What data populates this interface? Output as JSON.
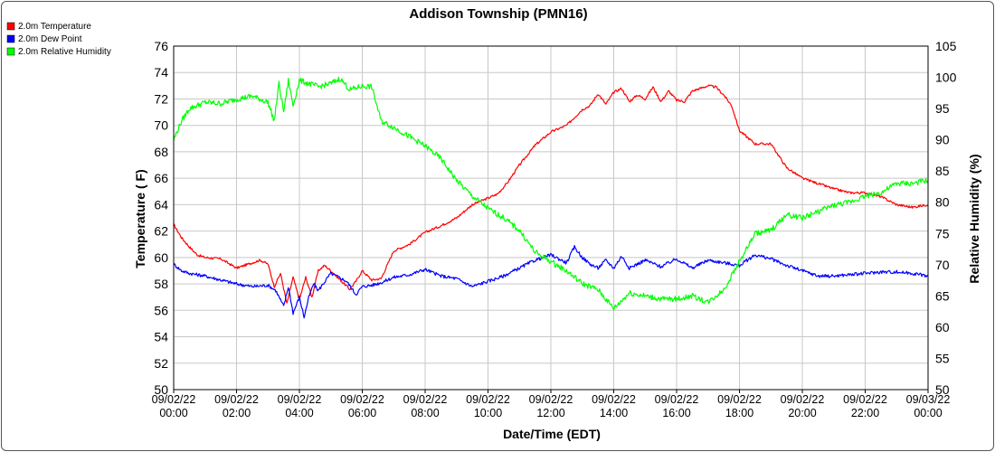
{
  "chart_data": {
    "type": "line",
    "title": "Addison Township (PMN16)",
    "xlabel": "Date/Time (EDT)",
    "ylabel_left": "Temperature ( F)",
    "ylabel_right": "Relative Humidity (%)",
    "ylim_left": [
      50,
      76
    ],
    "ylim_right": [
      50,
      105
    ],
    "yticks_left": [
      50,
      52,
      54,
      56,
      58,
      60,
      62,
      64,
      66,
      68,
      70,
      72,
      74,
      76
    ],
    "yticks_right": [
      50,
      55,
      60,
      65,
      70,
      75,
      80,
      85,
      90,
      95,
      100,
      105
    ],
    "xlim_hours": [
      0,
      24
    ],
    "xticks": [
      {
        "h": 0,
        "date": "09/02/22",
        "time": "00:00"
      },
      {
        "h": 2,
        "date": "09/02/22",
        "time": "02:00"
      },
      {
        "h": 4,
        "date": "09/02/22",
        "time": "04:00"
      },
      {
        "h": 6,
        "date": "09/02/22",
        "time": "06:00"
      },
      {
        "h": 8,
        "date": "09/02/22",
        "time": "08:00"
      },
      {
        "h": 10,
        "date": "09/02/22",
        "time": "10:00"
      },
      {
        "h": 12,
        "date": "09/02/22",
        "time": "12:00"
      },
      {
        "h": 14,
        "date": "09/02/22",
        "time": "14:00"
      },
      {
        "h": 16,
        "date": "09/02/22",
        "time": "16:00"
      },
      {
        "h": 18,
        "date": "09/02/22",
        "time": "18:00"
      },
      {
        "h": 20,
        "date": "09/02/22",
        "time": "20:00"
      },
      {
        "h": 22,
        "date": "09/02/22",
        "time": "22:00"
      },
      {
        "h": 24,
        "date": "09/03/22",
        "time": "00:00"
      }
    ],
    "grid": true,
    "legend_position": "top-left",
    "series": [
      {
        "name": "2.0m Temperature",
        "color": "#ff0000",
        "axis": "left",
        "x": [
          0,
          0.25,
          0.5,
          0.75,
          1,
          1.5,
          2,
          2.25,
          2.5,
          2.75,
          3,
          3.2,
          3.4,
          3.6,
          3.8,
          4,
          4.2,
          4.4,
          4.6,
          4.8,
          5,
          5.3,
          5.6,
          5.8,
          6,
          6.3,
          6.6,
          7,
          7.5,
          8,
          8.5,
          9,
          9.5,
          10,
          10.3,
          10.6,
          11,
          11.5,
          12,
          12.5,
          13,
          13.25,
          13.5,
          13.75,
          14,
          14.25,
          14.5,
          14.75,
          15,
          15.25,
          15.5,
          15.75,
          16,
          16.25,
          16.5,
          16.75,
          17,
          17.25,
          17.5,
          17.75,
          18,
          18.5,
          19,
          19.5,
          20,
          20.5,
          21,
          21.5,
          22,
          22.5,
          23,
          23.5,
          24
        ],
        "y": [
          62.5,
          61.5,
          60.8,
          60.2,
          60.0,
          59.9,
          59.2,
          59.4,
          59.6,
          59.8,
          59.5,
          57.8,
          58.8,
          56.5,
          58.5,
          56.8,
          58.5,
          57.0,
          59.0,
          59.4,
          59.0,
          58.3,
          57.6,
          58.2,
          59.0,
          58.3,
          58.4,
          60.5,
          61.0,
          61.9,
          62.4,
          63.0,
          64.0,
          64.5,
          64.8,
          65.6,
          67.0,
          68.5,
          69.5,
          70.0,
          71.2,
          71.5,
          72.4,
          71.6,
          72.5,
          72.8,
          71.8,
          72.3,
          72.0,
          72.9,
          71.8,
          72.6,
          71.9,
          71.8,
          72.6,
          72.8,
          73.0,
          72.9,
          72.3,
          71.5,
          69.6,
          68.6,
          68.6,
          66.8,
          66.0,
          65.6,
          65.2,
          64.9,
          64.9,
          64.6,
          64.0,
          63.8,
          64.0
        ]
      },
      {
        "name": "2.0m Dew Point",
        "color": "#0000ff",
        "axis": "left",
        "x": [
          0,
          0.25,
          0.5,
          1,
          1.5,
          2,
          2.5,
          3,
          3.25,
          3.5,
          3.65,
          3.8,
          4,
          4.15,
          4.3,
          4.45,
          4.6,
          5,
          5.5,
          5.8,
          6,
          6.3,
          6.6,
          7,
          7.5,
          8,
          8.5,
          9,
          9.5,
          10,
          10.5,
          11,
          11.5,
          12,
          12.5,
          12.75,
          13,
          13.25,
          13.5,
          13.75,
          14,
          14.25,
          14.5,
          15,
          15.5,
          16,
          16.5,
          17,
          17.5,
          18,
          18.5,
          19,
          19.5,
          20,
          20.5,
          21,
          21.5,
          22,
          22.5,
          23,
          23.5,
          24
        ],
        "y": [
          59.5,
          59.0,
          58.8,
          58.6,
          58.3,
          58.0,
          57.8,
          57.9,
          57.5,
          56.3,
          57.8,
          55.8,
          57.0,
          55.5,
          57.0,
          58.0,
          57.5,
          58.8,
          58.2,
          57.2,
          57.8,
          57.9,
          58.1,
          58.5,
          58.7,
          59.1,
          58.6,
          58.4,
          57.8,
          58.2,
          58.6,
          59.2,
          59.8,
          60.2,
          59.6,
          60.8,
          60.0,
          59.5,
          59.2,
          59.8,
          59.2,
          60.1,
          59.2,
          59.8,
          59.3,
          59.9,
          59.2,
          59.8,
          59.6,
          59.4,
          60.2,
          59.9,
          59.4,
          59.0,
          58.6,
          58.6,
          58.7,
          58.8,
          58.9,
          58.9,
          58.8,
          58.6
        ]
      },
      {
        "name": "2.0m Relative Humidity",
        "color": "#00ff00",
        "axis": "right",
        "x": [
          0,
          0.25,
          0.5,
          1,
          1.5,
          2,
          2.5,
          3,
          3.2,
          3.35,
          3.5,
          3.65,
          3.8,
          4,
          4.3,
          4.6,
          5,
          5.3,
          5.6,
          6,
          6.3,
          6.6,
          7,
          7.5,
          8,
          8.5,
          9,
          9.5,
          10,
          10.5,
          11,
          11.5,
          12,
          12.5,
          13,
          13.5,
          14,
          14.5,
          15,
          15.5,
          16,
          16.5,
          17,
          17.5,
          18,
          18.5,
          19,
          19.5,
          20,
          20.5,
          21,
          21.5,
          22,
          22.5,
          23,
          23.5,
          24
        ],
        "y": [
          90.0,
          93.0,
          95.0,
          96.0,
          95.8,
          96.5,
          97.0,
          96.0,
          93.0,
          99.0,
          94.5,
          99.5,
          95.5,
          99.5,
          99.0,
          98.5,
          99.0,
          99.8,
          98.0,
          98.6,
          98.5,
          93.0,
          92.0,
          90.5,
          89.0,
          87.0,
          83.5,
          81.0,
          79.0,
          77.5,
          75.5,
          72.0,
          70.5,
          69.0,
          67.0,
          66.0,
          63.0,
          65.5,
          65.0,
          64.5,
          64.5,
          65.0,
          64.0,
          66.0,
          70.5,
          75.0,
          75.5,
          78.0,
          77.5,
          78.5,
          79.5,
          80.0,
          81.0,
          81.5,
          83.0,
          83.0,
          83.5
        ]
      }
    ]
  }
}
